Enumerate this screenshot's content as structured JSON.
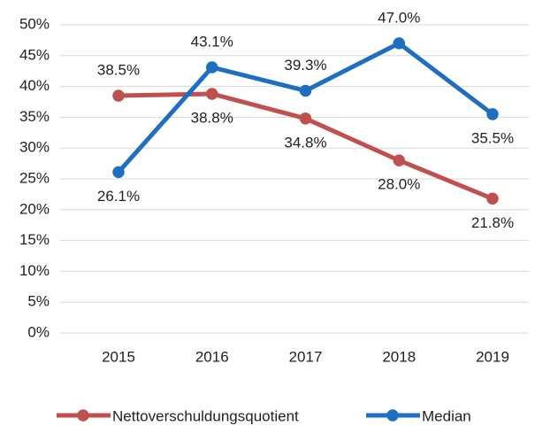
{
  "chart_data": {
    "type": "line",
    "categories": [
      "2015",
      "2016",
      "2017",
      "2018",
      "2019"
    ],
    "series": [
      {
        "name": "Nettoverschuldungsquotient",
        "color": "#c0504d",
        "values": [
          38.5,
          38.8,
          34.8,
          28.0,
          21.8
        ],
        "value_labels": [
          "38.5%",
          "38.8%",
          "34.8%",
          "28.0%",
          "21.8%"
        ]
      },
      {
        "name": "Median",
        "color": "#1f6fc0",
        "values": [
          26.1,
          43.1,
          39.3,
          47.0,
          35.5
        ],
        "value_labels": [
          "26.1%",
          "43.1%",
          "39.3%",
          "47.0%",
          "35.5%"
        ]
      }
    ],
    "ylim": [
      0,
      50
    ],
    "yticks": [
      {
        "value": 0,
        "label": "0%"
      },
      {
        "value": 5,
        "label": "5%"
      },
      {
        "value": 10,
        "label": "10%"
      },
      {
        "value": 15,
        "label": "15%"
      },
      {
        "value": 20,
        "label": "20%"
      },
      {
        "value": 25,
        "label": "25%"
      },
      {
        "value": 30,
        "label": "30%"
      },
      {
        "value": 35,
        "label": "35%"
      },
      {
        "value": 40,
        "label": "40%"
      },
      {
        "value": 45,
        "label": "45%"
      },
      {
        "value": 50,
        "label": "50%"
      }
    ],
    "grid": true,
    "legend": "bottom"
  }
}
